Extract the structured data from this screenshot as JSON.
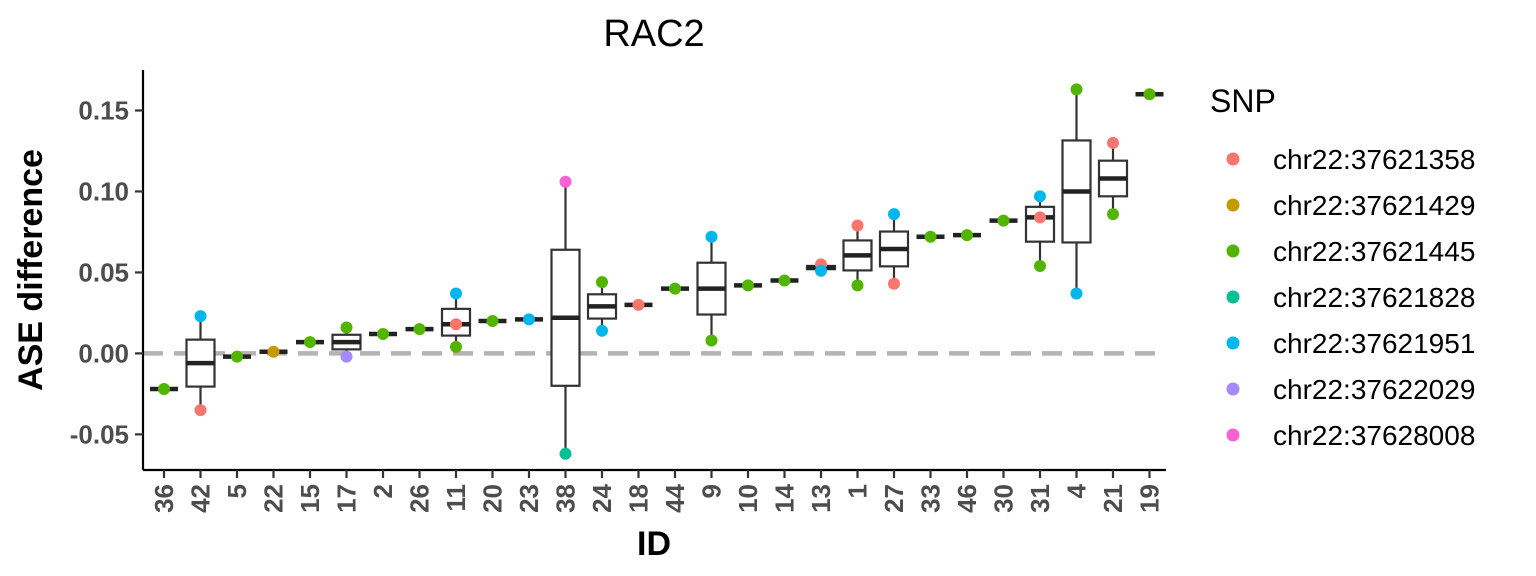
{
  "chart_data": {
    "type": "box",
    "title": "RAC2",
    "xlabel": "ID",
    "ylabel": "ASE difference",
    "ylim": [
      -0.072,
      0.175
    ],
    "yticks": [
      -0.05,
      0.0,
      0.05,
      0.1,
      0.15
    ],
    "ytick_labels": [
      "-0.05",
      "0.00",
      "0.05",
      "0.10",
      "0.15"
    ],
    "reference_line": {
      "y": 0,
      "style": "dashed",
      "color": "#b3b3b3"
    },
    "grid": false,
    "legend": {
      "title": "SNP",
      "position": "right",
      "entries": [
        {
          "label": "chr22:37621358",
          "color": "#F8766D"
        },
        {
          "label": "chr22:37621429",
          "color": "#C49A00"
        },
        {
          "label": "chr22:37621445",
          "color": "#53B400"
        },
        {
          "label": "chr22:37621828",
          "color": "#00C094"
        },
        {
          "label": "chr22:37621951",
          "color": "#00B6EB"
        },
        {
          "label": "chr22:37622029",
          "color": "#A58AFF"
        },
        {
          "label": "chr22:37628008",
          "color": "#FB61D7"
        }
      ]
    },
    "categories": [
      "36",
      "42",
      "5",
      "22",
      "15",
      "17",
      "2",
      "26",
      "11",
      "20",
      "23",
      "38",
      "24",
      "18",
      "44",
      "9",
      "10",
      "14",
      "13",
      "1",
      "27",
      "33",
      "46",
      "30",
      "31",
      "4",
      "21",
      "19"
    ],
    "groups": [
      {
        "id": "36",
        "points": [
          {
            "snp": "chr22:37621445",
            "y": -0.022
          }
        ]
      },
      {
        "id": "42",
        "points": [
          {
            "snp": "chr22:37621951",
            "y": 0.023
          },
          {
            "snp": "chr22:37621358",
            "y": -0.035
          }
        ]
      },
      {
        "id": "5",
        "points": [
          {
            "snp": "chr22:37621445",
            "y": -0.002
          }
        ]
      },
      {
        "id": "22",
        "points": [
          {
            "snp": "chr22:37621429",
            "y": 0.001
          }
        ]
      },
      {
        "id": "15",
        "points": [
          {
            "snp": "chr22:37621445",
            "y": 0.007
          }
        ]
      },
      {
        "id": "17",
        "points": [
          {
            "snp": "chr22:37621445",
            "y": 0.016
          },
          {
            "snp": "chr22:37622029",
            "y": -0.002
          }
        ]
      },
      {
        "id": "2",
        "points": [
          {
            "snp": "chr22:37621445",
            "y": 0.012
          }
        ]
      },
      {
        "id": "26",
        "points": [
          {
            "snp": "chr22:37621445",
            "y": 0.015
          }
        ]
      },
      {
        "id": "11",
        "points": [
          {
            "snp": "chr22:37621951",
            "y": 0.037
          },
          {
            "snp": "chr22:37621358",
            "y": 0.018
          },
          {
            "snp": "chr22:37621445",
            "y": 0.004
          }
        ]
      },
      {
        "id": "20",
        "points": [
          {
            "snp": "chr22:37621445",
            "y": 0.02
          }
        ]
      },
      {
        "id": "23",
        "points": [
          {
            "snp": "chr22:37621951",
            "y": 0.021
          }
        ]
      },
      {
        "id": "38",
        "points": [
          {
            "snp": "chr22:37628008",
            "y": 0.106
          },
          {
            "snp": "chr22:37621828",
            "y": -0.062
          }
        ]
      },
      {
        "id": "24",
        "points": [
          {
            "snp": "chr22:37621445",
            "y": 0.044
          },
          {
            "snp": "chr22:37621951",
            "y": 0.014
          }
        ]
      },
      {
        "id": "18",
        "points": [
          {
            "snp": "chr22:37621358",
            "y": 0.03
          }
        ]
      },
      {
        "id": "44",
        "points": [
          {
            "snp": "chr22:37621445",
            "y": 0.04
          }
        ]
      },
      {
        "id": "9",
        "points": [
          {
            "snp": "chr22:37621951",
            "y": 0.072
          },
          {
            "snp": "chr22:37621445",
            "y": 0.008
          }
        ]
      },
      {
        "id": "10",
        "points": [
          {
            "snp": "chr22:37621445",
            "y": 0.042
          }
        ]
      },
      {
        "id": "14",
        "points": [
          {
            "snp": "chr22:37621445",
            "y": 0.045
          }
        ]
      },
      {
        "id": "13",
        "points": [
          {
            "snp": "chr22:37621358",
            "y": 0.055
          },
          {
            "snp": "chr22:37621951",
            "y": 0.051
          }
        ]
      },
      {
        "id": "1",
        "points": [
          {
            "snp": "chr22:37621358",
            "y": 0.079
          },
          {
            "snp": "chr22:37621445",
            "y": 0.042
          }
        ]
      },
      {
        "id": "27",
        "points": [
          {
            "snp": "chr22:37621951",
            "y": 0.086
          },
          {
            "snp": "chr22:37621358",
            "y": 0.043
          }
        ]
      },
      {
        "id": "33",
        "points": [
          {
            "snp": "chr22:37621445",
            "y": 0.072
          }
        ]
      },
      {
        "id": "46",
        "points": [
          {
            "snp": "chr22:37621445",
            "y": 0.073
          }
        ]
      },
      {
        "id": "30",
        "points": [
          {
            "snp": "chr22:37621445",
            "y": 0.082
          }
        ]
      },
      {
        "id": "31",
        "points": [
          {
            "snp": "chr22:37621951",
            "y": 0.097
          },
          {
            "snp": "chr22:37621358",
            "y": 0.084
          },
          {
            "snp": "chr22:37621445",
            "y": 0.054
          }
        ]
      },
      {
        "id": "4",
        "points": [
          {
            "snp": "chr22:37621445",
            "y": 0.163
          },
          {
            "snp": "chr22:37621951",
            "y": 0.037
          }
        ]
      },
      {
        "id": "21",
        "points": [
          {
            "snp": "chr22:37621358",
            "y": 0.13
          },
          {
            "snp": "chr22:37621445",
            "y": 0.086
          }
        ]
      },
      {
        "id": "19",
        "points": [
          {
            "snp": "chr22:37621445",
            "y": 0.16
          }
        ]
      }
    ]
  }
}
